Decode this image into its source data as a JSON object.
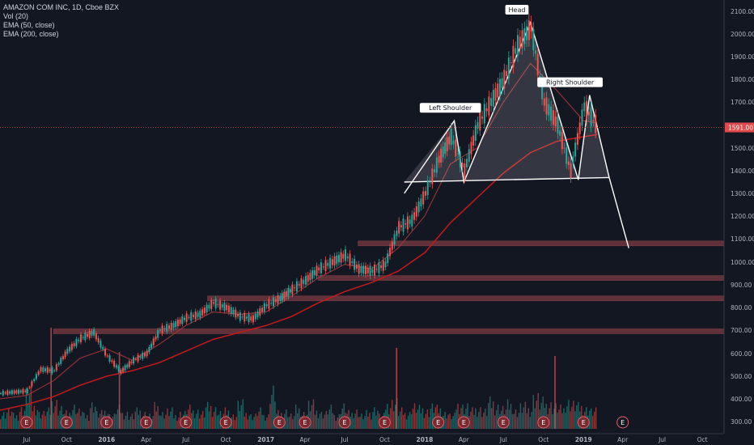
{
  "legend": {
    "symbol": "AMAZON COM INC, 1D, Cboe BZX",
    "volume": "Vol (20)",
    "ema50": "EMA (50, close)",
    "ema200": "EMA (200, close)"
  },
  "colors": {
    "background": "#131722",
    "price_up": "#26a69a",
    "price_down": "#ef5350",
    "ema50": "#a9363a",
    "ema200": "#c51a1a",
    "pattern": "#ffffff",
    "support_band": "#7b3a42",
    "last_price": "#e04a4a",
    "axis_text": "#b2b5be"
  },
  "last_price_label": "1591.00",
  "chart_data": {
    "type": "line",
    "title": "AMAZON COM INC, 1D, Cboe BZX",
    "xlabel": "",
    "ylabel": "",
    "ylim": [
      260,
      2120
    ],
    "y_ticks": [
      2100,
      2000,
      1900,
      1800,
      1700,
      1600,
      1500,
      1400,
      1300,
      1200,
      1100,
      1000,
      900,
      800,
      700,
      600,
      500,
      400,
      300
    ],
    "y_tick_labels": [
      "2100.00",
      "2000.00",
      "1900.00",
      "1800.00",
      "1700.00",
      "1600.00",
      "1500.00",
      "1400.00",
      "1300.00",
      "1200.00",
      "1100.00",
      "1000.00",
      "900.00",
      "800.00",
      "700.00",
      "600.00",
      "500.00",
      "400.00",
      "300.00"
    ],
    "x_ticks": [
      {
        "label": "Jul",
        "x": "2015-07"
      },
      {
        "label": "Oct",
        "x": "2015-10"
      },
      {
        "label": "2016",
        "x": "2016-01"
      },
      {
        "label": "Apr",
        "x": "2016-04"
      },
      {
        "label": "Jul",
        "x": "2016-07"
      },
      {
        "label": "Oct",
        "x": "2016-10"
      },
      {
        "label": "2017",
        "x": "2017-01"
      },
      {
        "label": "Apr",
        "x": "2017-04"
      },
      {
        "label": "Jul",
        "x": "2017-07"
      },
      {
        "label": "Oct",
        "x": "2017-10"
      },
      {
        "label": "2018",
        "x": "2018-01"
      },
      {
        "label": "Apr",
        "x": "2018-04"
      },
      {
        "label": "Jul",
        "x": "2018-07"
      },
      {
        "label": "Oct",
        "x": "2018-10"
      },
      {
        "label": "2019",
        "x": "2019-01"
      },
      {
        "label": "Apr",
        "x": "2019-04"
      },
      {
        "label": "Jul",
        "x": "2019-07"
      },
      {
        "label": "Oct",
        "x": "2019-10"
      }
    ],
    "series": [
      {
        "name": "AMAZON COM INC",
        "x": [
          "2015-05",
          "2015-06",
          "2015-07",
          "2015-08",
          "2015-09",
          "2015-10",
          "2015-11",
          "2015-12",
          "2016-01",
          "2016-02",
          "2016-03",
          "2016-04",
          "2016-05",
          "2016-06",
          "2016-07",
          "2016-08",
          "2016-09",
          "2016-10",
          "2016-11",
          "2016-12",
          "2017-01",
          "2017-02",
          "2017-03",
          "2017-04",
          "2017-05",
          "2017-06",
          "2017-07",
          "2017-08",
          "2017-09",
          "2017-10",
          "2017-11",
          "2017-12",
          "2018-01",
          "2018-02",
          "2018-03",
          "2018-04",
          "2018-05",
          "2018-06",
          "2018-07",
          "2018-08",
          "2018-09",
          "2018-10",
          "2018-11",
          "2018-12",
          "2019-01",
          "2019-02"
        ],
        "values": [
          425,
          430,
          435,
          530,
          525,
          610,
          665,
          690,
          590,
          520,
          570,
          600,
          700,
          720,
          755,
          770,
          820,
          800,
          760,
          750,
          810,
          840,
          880,
          920,
          970,
          1000,
          1030,
          970,
          960,
          990,
          1150,
          1180,
          1300,
          1450,
          1550,
          1400,
          1600,
          1700,
          1800,
          1950,
          2030,
          1700,
          1600,
          1400,
          1680,
          1591
        ]
      },
      {
        "name": "EMA (50, close)",
        "x": [
          "2015-05",
          "2015-07",
          "2015-09",
          "2015-11",
          "2016-01",
          "2016-03",
          "2016-05",
          "2016-07",
          "2016-09",
          "2016-11",
          "2017-01",
          "2017-03",
          "2017-05",
          "2017-07",
          "2017-09",
          "2017-11",
          "2018-01",
          "2018-03",
          "2018-05",
          "2018-07",
          "2018-09",
          "2018-11",
          "2019-01",
          "2019-02"
        ],
        "values": [
          400,
          415,
          480,
          580,
          620,
          570,
          640,
          720,
          780,
          770,
          780,
          850,
          930,
          990,
          970,
          1060,
          1200,
          1430,
          1500,
          1700,
          1870,
          1750,
          1620,
          1610
        ]
      },
      {
        "name": "EMA (200, close)",
        "x": [
          "2015-05",
          "2015-07",
          "2015-09",
          "2015-11",
          "2016-01",
          "2016-03",
          "2016-05",
          "2016-07",
          "2016-09",
          "2016-11",
          "2017-01",
          "2017-03",
          "2017-05",
          "2017-07",
          "2017-09",
          "2017-11",
          "2018-01",
          "2018-03",
          "2018-05",
          "2018-07",
          "2018-09",
          "2018-11",
          "2019-01",
          "2019-02"
        ],
        "values": [
          350,
          375,
          410,
          460,
          500,
          525,
          560,
          610,
          660,
          690,
          720,
          760,
          820,
          870,
          910,
          960,
          1040,
          1170,
          1280,
          1390,
          1480,
          1530,
          1550,
          1560
        ]
      }
    ],
    "volume_ylim": [
      0,
      1
    ],
    "volume_values": [
      0.35,
      0.4,
      0.3,
      0.45,
      0.8,
      0.5,
      0.35,
      0.4,
      0.6,
      0.45,
      0.35,
      0.5,
      0.4,
      0.3,
      0.55,
      0.35,
      0.4,
      0.3,
      0.45,
      0.35,
      0.3,
      0.4,
      0.35,
      0.3,
      0.5,
      0.35,
      0.4,
      0.3,
      0.35,
      0.45,
      0.4,
      0.35,
      0.5,
      0.45,
      0.35,
      0.4,
      0.3,
      0.55,
      0.35,
      0.3,
      0.4,
      0.3,
      0.85,
      0.35,
      0.4,
      0.3,
      0.45,
      0.35,
      0.55,
      0.4,
      0.35,
      0.45,
      0.3,
      0.5,
      0.35,
      0.4,
      0.3,
      0.35,
      0.45,
      0.3,
      0.55,
      0.6,
      0.4,
      0.35,
      0.5,
      0.45,
      0.4,
      0.5,
      0.45,
      0.35,
      0.3,
      0.55,
      0.5,
      0.4,
      0.45,
      0.4,
      0.6,
      0.5,
      0.45,
      0.55,
      0.4,
      0.5,
      0.45,
      0.7,
      0.6,
      0.55,
      0.5,
      0.45,
      0.6,
      0.55,
      0.5,
      0.45,
      0.4
    ],
    "earnings_markers": [
      "2015-07",
      "2015-10",
      "2016-01",
      "2016-04",
      "2016-07",
      "2016-10",
      "2017-02",
      "2017-04",
      "2017-07",
      "2017-10",
      "2018-02",
      "2018-04",
      "2018-07",
      "2018-10",
      "2019-01",
      "2019-04"
    ],
    "support_levels": [
      1080,
      930,
      840,
      695
    ],
    "annotations": [
      {
        "label": "Left Shoulder",
        "x": "2018-03",
        "y": 1620
      },
      {
        "label": "Head",
        "x": "2018-08",
        "y": 2050
      },
      {
        "label": "Right Shoulder",
        "x": "2018-12",
        "y": 1730
      }
    ],
    "pattern_points": [
      {
        "x": "2017-11-15",
        "y": 1300
      },
      {
        "x": "2018-03-10",
        "y": 1620
      },
      {
        "x": "2018-04-01",
        "y": 1350
      },
      {
        "x": "2018-09-01",
        "y": 2050
      },
      {
        "x": "2018-12-20",
        "y": 1360
      },
      {
        "x": "2019-01-15",
        "y": 1730
      },
      {
        "x": "2019-03-01",
        "y": 1370
      },
      {
        "x": "2019-04-15",
        "y": 1060
      }
    ],
    "neckline": [
      {
        "x": "2017-11-15",
        "y": 1350
      },
      {
        "x": "2019-03-01",
        "y": 1370
      }
    ],
    "grid": false
  }
}
